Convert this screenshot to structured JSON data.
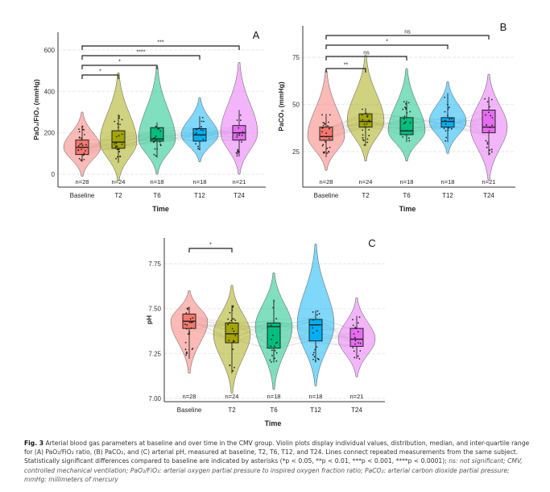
{
  "chart_data": [
    {
      "panel": "A",
      "type": "violin",
      "title": "",
      "panel_label": "A",
      "xlabel": "Time",
      "ylabel": "PaO₂/FiO₂ (mmHg)",
      "categories": [
        "Baseline",
        "T2",
        "T6",
        "T12",
        "T24"
      ],
      "n": [
        "n=28",
        "n=24",
        "n=18",
        "n=18",
        "n=21"
      ],
      "yticks": [
        0,
        200,
        400,
        600
      ],
      "ylim": [
        -40,
        680
      ],
      "colors": [
        "#f8766d",
        "#a3a500",
        "#00bf7d",
        "#00b0f6",
        "#e76bf3"
      ],
      "boxes": [
        {
          "min": 60,
          "q1": 95,
          "median": 130,
          "q3": 165,
          "max": 235,
          "vmin": -10,
          "vmax": 300
        },
        {
          "min": 55,
          "q1": 125,
          "median": 155,
          "q3": 210,
          "max": 290,
          "vmin": -30,
          "vmax": 490
        },
        {
          "min": 80,
          "q1": 160,
          "median": 170,
          "q3": 225,
          "max": 250,
          "vmin": 0,
          "vmax": 520
        },
        {
          "min": 120,
          "q1": 160,
          "median": 190,
          "q3": 220,
          "max": 280,
          "vmin": 60,
          "vmax": 370
        },
        {
          "min": 85,
          "q1": 165,
          "median": 200,
          "q3": 235,
          "max": 310,
          "vmin": 0,
          "vmax": 540
        }
      ],
      "comparisons": [
        {
          "from": "Baseline",
          "to": "T2",
          "label": "*"
        },
        {
          "from": "Baseline",
          "to": "T6",
          "label": "*"
        },
        {
          "from": "Baseline",
          "to": "T12",
          "label": "****"
        },
        {
          "from": "Baseline",
          "to": "T24",
          "label": "***"
        }
      ],
      "grid": true
    },
    {
      "panel": "B",
      "type": "violin",
      "panel_label": "B",
      "xlabel": "Time",
      "ylabel": "PaCO₂ (mmHg)",
      "categories": [
        "Baseline",
        "T2",
        "T6",
        "T12",
        "T24"
      ],
      "n": [
        "n=28",
        "n=24",
        "n=18",
        "n=18",
        "n=21"
      ],
      "yticks": [
        25,
        50,
        75
      ],
      "ylim": [
        8,
        92
      ],
      "colors": [
        "#f8766d",
        "#a3a500",
        "#00bf7d",
        "#00b0f6",
        "#e76bf3"
      ],
      "boxes": [
        {
          "min": 22,
          "q1": 31,
          "median": 33,
          "q3": 38,
          "max": 45,
          "vmin": 15,
          "vmax": 68
        },
        {
          "min": 28,
          "q1": 38,
          "median": 41,
          "q3": 45,
          "max": 48,
          "vmin": 20,
          "vmax": 76
        },
        {
          "min": 30,
          "q1": 34,
          "median": 36,
          "q3": 43,
          "max": 52,
          "vmin": 20,
          "vmax": 69
        },
        {
          "min": 30,
          "q1": 38,
          "median": 41,
          "q3": 43,
          "max": 56,
          "vmin": 24,
          "vmax": 62
        },
        {
          "min": 23,
          "q1": 35,
          "median": 38,
          "q3": 47,
          "max": 54,
          "vmin": 10,
          "vmax": 66
        }
      ],
      "comparisons": [
        {
          "from": "Baseline",
          "to": "T2",
          "label": "**"
        },
        {
          "from": "Baseline",
          "to": "T6",
          "label": "ns"
        },
        {
          "from": "Baseline",
          "to": "T12",
          "label": "*"
        },
        {
          "from": "Baseline",
          "to": "T24",
          "label": "ns"
        }
      ],
      "grid": true
    },
    {
      "panel": "C",
      "type": "violin",
      "panel_label": "C",
      "xlabel": "Time",
      "ylabel": "pH",
      "categories": [
        "Baseline",
        "T2",
        "T6",
        "T12",
        "T24"
      ],
      "n": [
        "n=28",
        "n=24",
        "n=18",
        "n=18",
        "n=21"
      ],
      "yticks": [
        7.0,
        7.25,
        7.5,
        7.75
      ],
      "ytick_labels": [
        "7.00",
        "7.25",
        "7.50",
        "7.75"
      ],
      "ylim": [
        6.99,
        7.87
      ],
      "colors": [
        "#f8766d",
        "#a3a500",
        "#00bf7d",
        "#00b0f6",
        "#e76bf3"
      ],
      "boxes": [
        {
          "min": 7.22,
          "q1": 7.39,
          "median": 7.43,
          "q3": 7.47,
          "max": 7.51,
          "vmin": 7.14,
          "vmax": 7.6
        },
        {
          "min": 7.14,
          "q1": 7.31,
          "median": 7.36,
          "q3": 7.42,
          "max": 7.52,
          "vmin": 7.03,
          "vmax": 7.63
        },
        {
          "min": 7.2,
          "q1": 7.28,
          "median": 7.4,
          "q3": 7.42,
          "max": 7.55,
          "vmin": 7.05,
          "vmax": 7.7
        },
        {
          "min": 7.2,
          "q1": 7.32,
          "median": 7.41,
          "q3": 7.44,
          "max": 7.49,
          "vmin": 7.07,
          "vmax": 7.86
        },
        {
          "min": 7.22,
          "q1": 7.29,
          "median": 7.33,
          "q3": 7.39,
          "max": 7.46,
          "vmin": 7.12,
          "vmax": 7.56
        }
      ],
      "comparisons": [
        {
          "from": "Baseline",
          "to": "T2",
          "label": "*"
        }
      ],
      "grid": true
    }
  ],
  "caption": {
    "fig_label": "Fig. 3",
    "text": "Arterial blood gas parameters at baseline and over time in the CMV group. Violin plots display individual values, distribution, median, and inter-quartile range for (A) PaO₂/FiO₂ ratio, (B) PaCO₂, and (C) arterial pH, measured at baseline, T2, T6, T12, and T24. Lines connect repeated measurements from the same subject. Statistically significant differences compared to baseline are indicated by asterisks (*p < 0.05, **p < 0.01, ***p < 0.001, ****p < 0.0001);",
    "abbrev": "ns: not significant; CMV, controlled mechanical ventilation; PaO₂/FiO₂: arterial oxygen partial pressure to inspired oxygen fraction ratio; PaCO₂: arterial carbon dioxide partial pressure; mmHg: millimeters of mercury"
  }
}
